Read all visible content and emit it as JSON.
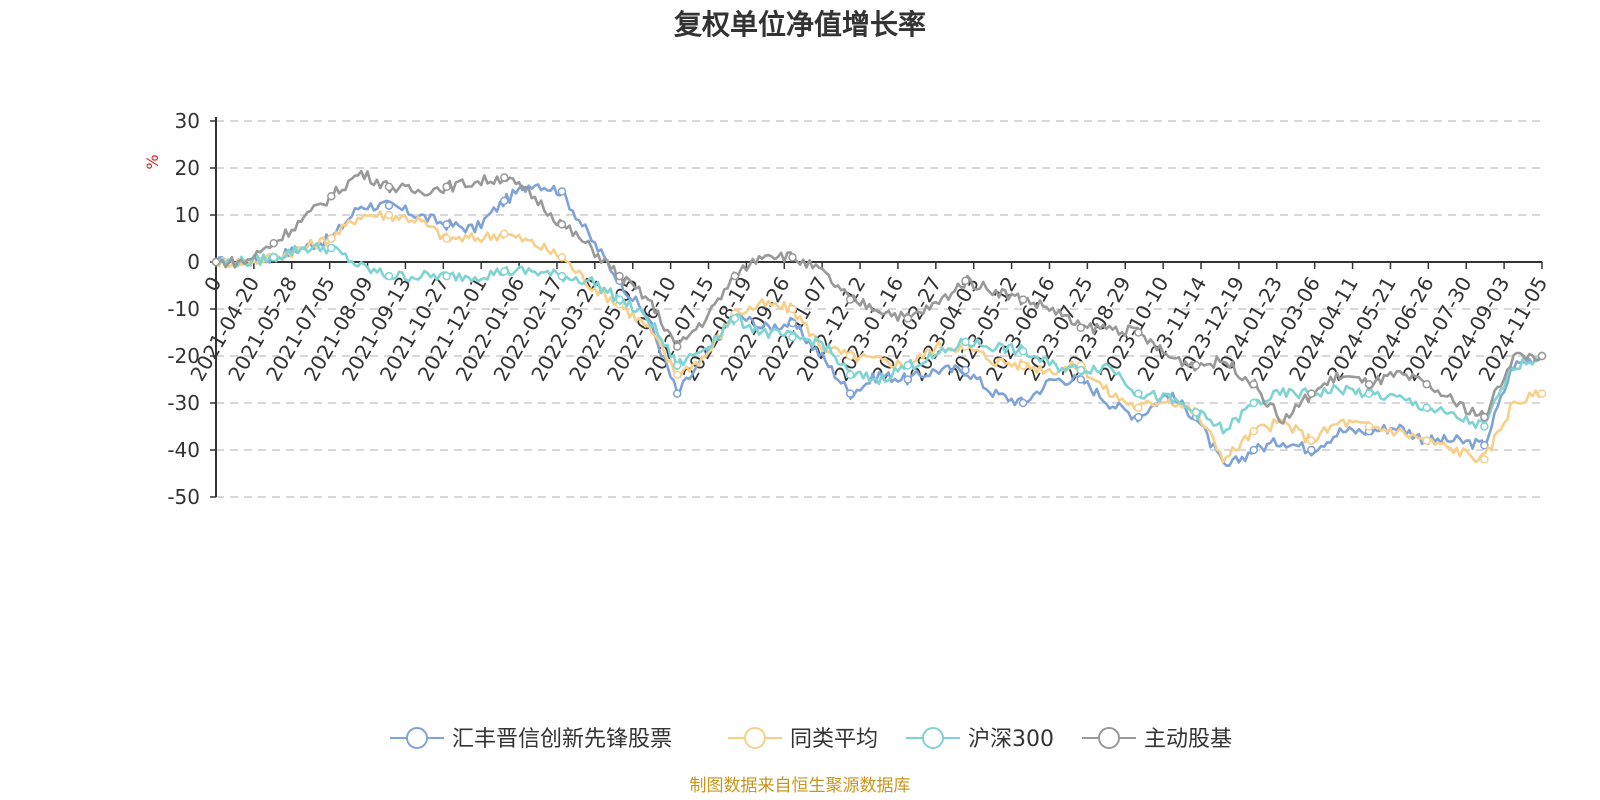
{
  "chart_data": {
    "type": "line",
    "title": "复权单位净值增长率",
    "ylabel": "%",
    "ylim": [
      -50,
      30
    ],
    "yticks": [
      30,
      20,
      10,
      0,
      -10,
      -20,
      -30,
      -40,
      -50
    ],
    "grid": true,
    "legend_position": "bottom",
    "xtick_labels": [
      "0",
      "2021-04-20",
      "2021-05-28",
      "2021-07-05",
      "2021-08-09",
      "2021-09-13",
      "2021-10-27",
      "2021-12-01",
      "2022-01-06",
      "2022-02-17",
      "2022-03-24",
      "2022-05-05",
      "2022-06-10",
      "2022-07-15",
      "2022-08-19",
      "2022-09-26",
      "2022-11-07",
      "2022-12-12",
      "2023-01-16",
      "2023-02-27",
      "2023-04-03",
      "2023-05-12",
      "2023-06-16",
      "2023-07-25",
      "2023-08-29",
      "2023-10-10",
      "2023-11-14",
      "2023-12-19",
      "2024-01-23",
      "2024-03-06",
      "2024-04-11",
      "2024-05-21",
      "2024-06-26",
      "2024-07-30",
      "2024-09-03",
      "2024-11-05"
    ],
    "series": [
      {
        "name": "汇丰晋信创新先锋股票",
        "color": "#7fa3d6",
        "values": [
          0,
          0,
          1,
          3,
          5,
          12,
          12,
          10,
          8,
          7,
          13,
          17,
          15,
          5,
          -4,
          -12,
          -28,
          -20,
          -11,
          -14,
          -13,
          -20,
          -28,
          -24,
          -25,
          -23,
          -23,
          -28,
          -30,
          -25,
          -25,
          -30,
          -33,
          -28,
          -33,
          -44,
          -40,
          -38,
          -40,
          -36,
          -36,
          -35,
          -38,
          -38,
          -39,
          -22,
          -20
        ]
      },
      {
        "name": "同类平均",
        "color": "#f7cf8a",
        "values": [
          0,
          0,
          1,
          3,
          5,
          10,
          10,
          9,
          5,
          5,
          6,
          4,
          1,
          -5,
          -9,
          -14,
          -24,
          -20,
          -11,
          -9,
          -10,
          -18,
          -20,
          -21,
          -22,
          -18,
          -18,
          -21,
          -22,
          -23,
          -22,
          -28,
          -31,
          -29,
          -32,
          -42,
          -36,
          -34,
          -38,
          -34,
          -35,
          -36,
          -38,
          -40,
          -42,
          -30,
          -28
        ]
      },
      {
        "name": "沪深300",
        "color": "#7fd3d3",
        "values": [
          0,
          0,
          1,
          3,
          3,
          -1,
          -3,
          -3,
          -3,
          -3,
          -2,
          -2,
          -3,
          -4,
          -8,
          -12,
          -22,
          -18,
          -12,
          -15,
          -16,
          -17,
          -24,
          -25,
          -22,
          -20,
          -17,
          -18,
          -19,
          -22,
          -23,
          -22,
          -28,
          -29,
          -32,
          -36,
          -30,
          -28,
          -28,
          -27,
          -28,
          -29,
          -31,
          -33,
          -35,
          -22,
          -20
        ]
      },
      {
        "name": "主动股基",
        "color": "#999999",
        "values": [
          0,
          0,
          4,
          9,
          14,
          19,
          16,
          15,
          16,
          17,
          18,
          14,
          8,
          3,
          -3,
          -8,
          -18,
          -12,
          -3,
          2,
          1,
          -2,
          -8,
          -10,
          -12,
          -9,
          -4,
          -6,
          -8,
          -10,
          -14,
          -14,
          -15,
          -20,
          -22,
          -21,
          -26,
          -34,
          -28,
          -24,
          -26,
          -24,
          -26,
          -30,
          -33,
          -20,
          -20
        ]
      }
    ]
  },
  "source_note": "制图数据来自恒生聚源数据库"
}
